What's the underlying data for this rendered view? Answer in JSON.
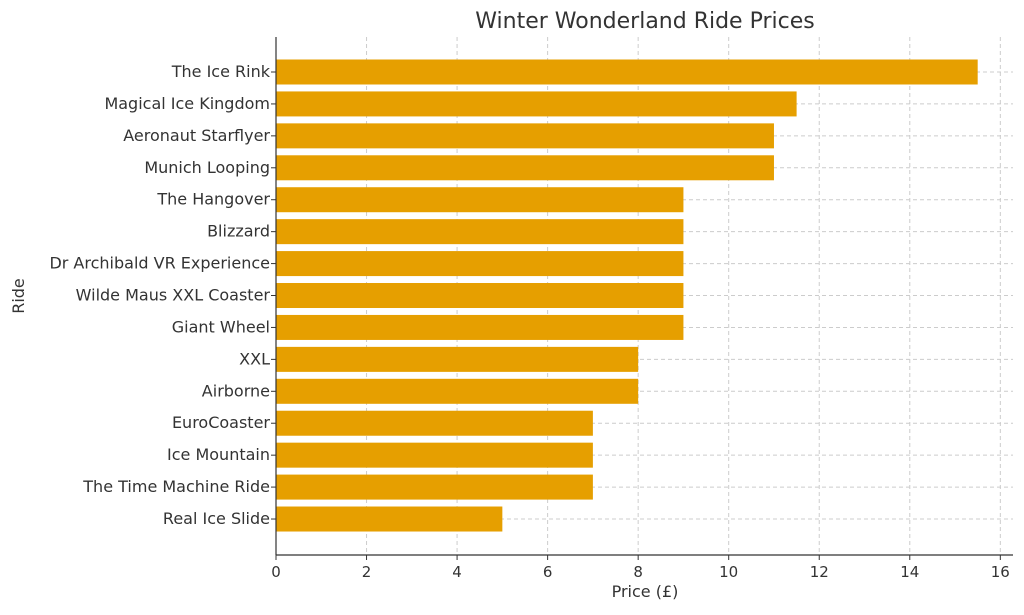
{
  "chart_data": {
    "type": "bar",
    "orientation": "horizontal",
    "title": "Winter Wonderland Ride Prices",
    "xlabel": "Price (£)",
    "ylabel": "Ride",
    "xlim": [
      0,
      16.3
    ],
    "xticks": [
      0,
      2,
      4,
      6,
      8,
      10,
      12,
      14,
      16
    ],
    "grid": true,
    "bar_color": "#E69F00",
    "categories": [
      "The Ice Rink",
      "Magical Ice Kingdom",
      "Aeronaut Starflyer",
      "Munich Looping",
      "The Hangover",
      "Blizzard",
      "Dr Archibald VR Experience",
      "Wilde Maus XXL Coaster",
      "Giant Wheel",
      "XXL",
      "Airborne",
      "EuroCoaster",
      "Ice Mountain",
      "The Time Machine Ride",
      "Real Ice Slide"
    ],
    "values": [
      15.5,
      11.5,
      11,
      11,
      9,
      9,
      9,
      9,
      9,
      8,
      8,
      7,
      7,
      7,
      5
    ]
  }
}
